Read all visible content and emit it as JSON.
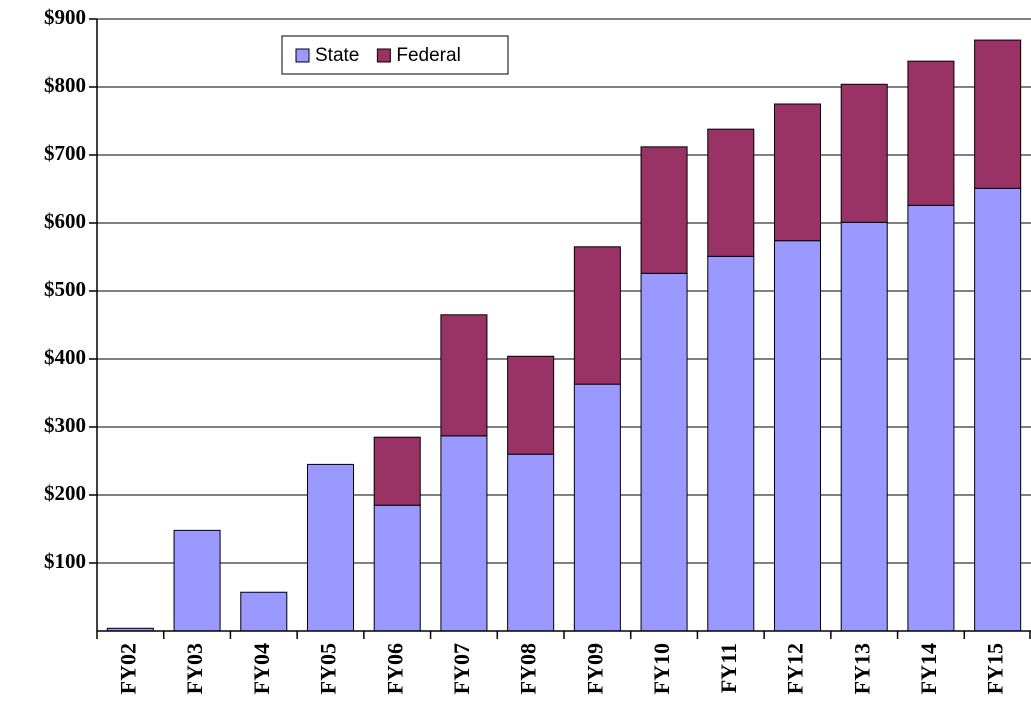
{
  "chart_data": {
    "type": "stacked_bar",
    "categories": [
      "FY02",
      "FY03",
      "FY04",
      "FY05",
      "FY06",
      "FY07",
      "FY08",
      "FY09",
      "FY10",
      "FY11",
      "FY12",
      "FY13",
      "FY14",
      "FY15"
    ],
    "series": [
      {
        "name": "State",
        "color": "#9999ff",
        "values": [
          4,
          148,
          57,
          245,
          185,
          287,
          260,
          363,
          526,
          551,
          574,
          601,
          626,
          651
        ]
      },
      {
        "name": "Federal",
        "color": "#993366",
        "values": [
          0,
          0,
          0,
          0,
          100,
          178,
          144,
          202,
          186,
          187,
          201,
          203,
          212,
          218
        ]
      }
    ],
    "ylim": [
      0,
      900
    ],
    "yticks": [
      {
        "value": 100,
        "label": "$100"
      },
      {
        "value": 200,
        "label": "$200"
      },
      {
        "value": 300,
        "label": "$300"
      },
      {
        "value": 400,
        "label": "$400"
      },
      {
        "value": 500,
        "label": "$500"
      },
      {
        "value": 600,
        "label": "$600"
      },
      {
        "value": 700,
        "label": "$700"
      },
      {
        "value": 800,
        "label": "$800"
      },
      {
        "value": 900,
        "label": "$900"
      }
    ],
    "grid": true,
    "legend": "top-left"
  }
}
